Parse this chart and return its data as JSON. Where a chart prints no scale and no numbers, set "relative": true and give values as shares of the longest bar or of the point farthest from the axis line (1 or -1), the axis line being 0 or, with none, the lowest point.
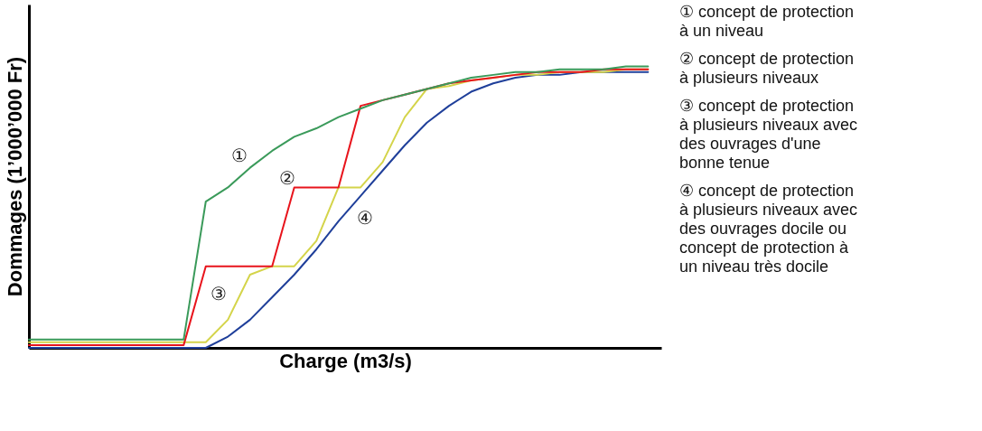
{
  "chart_data": {
    "type": "line",
    "relative": true,
    "xlabel": "Charge (m3/s)",
    "ylabel": "Dommages (1’000’000 Fr)",
    "categories": [
      null,
      null,
      null,
      null,
      null,
      null,
      null,
      null,
      null,
      null,
      null,
      null,
      null,
      null,
      null,
      null,
      null,
      null,
      null,
      null,
      null,
      null,
      null,
      null,
      null,
      null,
      null,
      null,
      null
    ],
    "series": [
      {
        "name": "④",
        "color": "#1f3f9a",
        "values": [
          0,
          0,
          0,
          0,
          0,
          0,
          0,
          0,
          0,
          0.04,
          0.1,
          0.18,
          0.26,
          0.35,
          0.45,
          0.54,
          0.63,
          0.72,
          0.8,
          0.86,
          0.91,
          0.94,
          0.96,
          0.97,
          0.97,
          0.98,
          0.98,
          0.98,
          0.98
        ]
      },
      {
        "name": "③",
        "color": "#d4d44a",
        "values": [
          0.02,
          0.02,
          0.02,
          0.02,
          0.02,
          0.02,
          0.02,
          0.02,
          0.02,
          0.1,
          0.26,
          0.29,
          0.29,
          0.38,
          0.57,
          0.57,
          0.66,
          0.82,
          0.92,
          0.93,
          0.95,
          0.96,
          0.97,
          0.97,
          0.98,
          0.98,
          0.98,
          0.99,
          0.99
        ]
      },
      {
        "name": "②",
        "color": "#e8141c",
        "values": [
          0.01,
          0.01,
          0.01,
          0.01,
          0.01,
          0.01,
          0.01,
          0.01,
          0.29,
          0.29,
          0.29,
          0.29,
          0.57,
          0.57,
          0.57,
          0.86,
          0.88,
          0.9,
          0.92,
          0.94,
          0.95,
          0.96,
          0.97,
          0.98,
          0.98,
          0.98,
          0.99,
          0.99,
          0.99
        ]
      },
      {
        "name": "①",
        "color": "#3a9a5a",
        "values": [
          0.03,
          0.03,
          0.03,
          0.03,
          0.03,
          0.03,
          0.03,
          0.03,
          0.52,
          0.57,
          0.64,
          0.7,
          0.75,
          0.78,
          0.82,
          0.85,
          0.88,
          0.9,
          0.92,
          0.94,
          0.96,
          0.97,
          0.98,
          0.98,
          0.99,
          0.99,
          0.99,
          1.0,
          1.0
        ]
      }
    ],
    "annotations": [
      "① concept de protection\nà un niveau",
      "② concept de protection\nà plusieurs niveaux",
      "③ concept de protection\nà plusieurs niveaux avec\ndes ouvrages d'une\nbonne tenue",
      "④ concept de protection\nà plusieurs niveaux avec\ndes ouvrages docile ou\nconcept de protection à\nun niveau très docile"
    ],
    "legend": false,
    "grid": false
  }
}
